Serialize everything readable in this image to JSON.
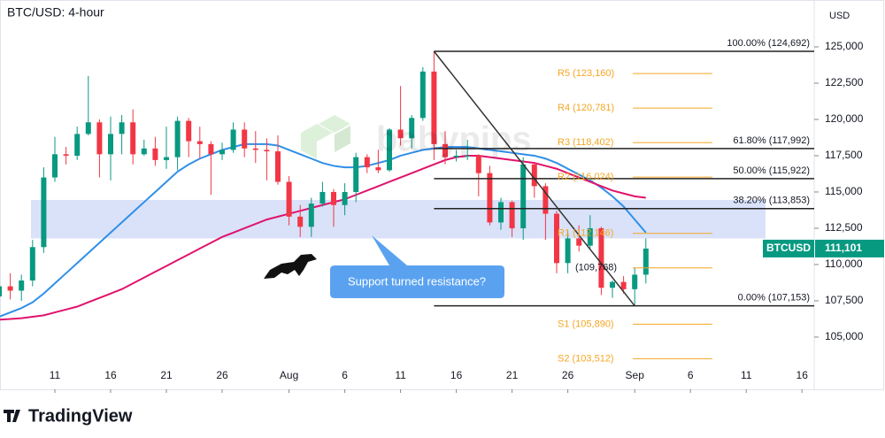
{
  "chart_data": {
    "type": "candlestick",
    "title": "BTC/USD: 4-hour",
    "y_axis_label": "USD",
    "symbol": "BTCUSD",
    "watermark": "babypips",
    "brand": "TradingView",
    "annotation": "Support turned resistance?",
    "categories": [
      null,
      null,
      null,
      null,
      null,
      "11",
      null,
      null,
      null,
      null,
      "16",
      null,
      null,
      null,
      null,
      "21",
      null,
      null,
      null,
      null,
      "26",
      null,
      null,
      null,
      null,
      null,
      "Aug",
      null,
      null,
      null,
      null,
      "6",
      null,
      null,
      null,
      null,
      "11",
      null,
      null,
      null,
      null,
      "16",
      null,
      null,
      null,
      null,
      "21",
      null,
      null,
      null,
      null,
      "26",
      null,
      null,
      null,
      null,
      null,
      "Sep",
      null,
      null,
      null,
      null,
      "6",
      null,
      null,
      null,
      null,
      "11",
      null,
      null,
      null,
      null,
      "16",
      null
    ],
    "open": [
      107800,
      108500,
      108200,
      108900,
      111200,
      116000,
      117600,
      117500,
      119000,
      119800,
      117600,
      119000,
      119800,
      117600,
      118000,
      117200,
      117400,
      119900,
      118500,
      118300,
      117600,
      117900,
      119300,
      118000,
      117900,
      117800,
      115700,
      113300,
      112600,
      114200,
      115000,
      114100,
      115000,
      117400,
      116700,
      116500,
      119300,
      118700,
      120100,
      123300,
      118300,
      117400,
      117500,
      117500,
      116300,
      112900,
      114300,
      112500,
      116900,
      115400,
      113500,
      110100,
      111800,
      111300,
      112500,
      108400,
      108800,
      108300,
      109300,
      null,
      null,
      null,
      null,
      null,
      null,
      null,
      null,
      null,
      null,
      null,
      null,
      null,
      null,
      null
    ],
    "high": [
      109200,
      109400,
      109300,
      111700,
      116700,
      118800,
      118100,
      119500,
      123000,
      120000,
      120200,
      120300,
      120700,
      118600,
      118800,
      119500,
      120200,
      120100,
      119500,
      118500,
      118400,
      119800,
      119800,
      119200,
      118700,
      118900,
      116100,
      114100,
      114600,
      115700,
      115200,
      115600,
      117700,
      117600,
      117900,
      119400,
      122300,
      120300,
      123600,
      124692,
      119200,
      117900,
      118600,
      117600,
      116800,
      114600,
      114400,
      117400,
      117000,
      115600,
      113700,
      112300,
      112700,
      113400,
      112600,
      108900,
      109200,
      109800,
      111800,
      null,
      null,
      null,
      null,
      null,
      null,
      null,
      null,
      null,
      null,
      null,
      null,
      null,
      null,
      null
    ],
    "low": [
      107400,
      107600,
      107500,
      108500,
      110800,
      115700,
      116900,
      117200,
      118900,
      116000,
      115800,
      117600,
      116900,
      117500,
      116800,
      116600,
      116500,
      117400,
      117300,
      114800,
      117200,
      117700,
      117400,
      117000,
      115800,
      115500,
      112700,
      111900,
      111900,
      114000,
      112600,
      113400,
      114300,
      116300,
      116300,
      116400,
      118200,
      118000,
      119900,
      117200,
      116900,
      117100,
      117200,
      114700,
      112700,
      112400,
      111900,
      111700,
      114600,
      111700,
      109400,
      109400,
      110900,
      111100,
      107900,
      107700,
      108000,
      107153,
      108700,
      null,
      null,
      null,
      null,
      null,
      null,
      null,
      null,
      null,
      null,
      null,
      null,
      null,
      null,
      null
    ],
    "close": [
      108500,
      108200,
      108900,
      111200,
      116000,
      117600,
      117500,
      119000,
      119800,
      117600,
      119000,
      119800,
      117600,
      118000,
      117200,
      117400,
      119900,
      118500,
      118300,
      117600,
      117900,
      119300,
      118000,
      117900,
      117800,
      115700,
      113300,
      112600,
      114200,
      115000,
      114100,
      115000,
      117400,
      116700,
      116500,
      119300,
      118700,
      120100,
      123300,
      118300,
      117400,
      117500,
      117500,
      116300,
      112900,
      114300,
      112500,
      116900,
      115400,
      113500,
      110100,
      111800,
      111300,
      112500,
      108400,
      108800,
      108300,
      109300,
      111101,
      null,
      null,
      null,
      null,
      null,
      null,
      null,
      null,
      null,
      null,
      null,
      null,
      null,
      null,
      null
    ],
    "last_price": {
      "value": 111101,
      "label": "111,101"
    },
    "up_color": "#089981",
    "down_color": "#f23645",
    "series": [
      {
        "color": "#2f8fe8",
        "values": [
          106400,
          106700,
          107000,
          107400,
          108000,
          108700,
          109400,
          110100,
          110800,
          111500,
          112200,
          112900,
          113600,
          114300,
          115000,
          115700,
          116400,
          116900,
          117300,
          117600,
          117900,
          118100,
          118300,
          118300,
          118300,
          118200,
          117900,
          117600,
          117300,
          117000,
          116800,
          116700,
          116700,
          116800,
          117000,
          117200,
          117500,
          117700,
          117900,
          118000,
          118100,
          118100,
          118100,
          118000,
          117900,
          117800,
          117700,
          117600,
          117500,
          117300,
          117000,
          116600,
          116200,
          115800,
          115300,
          114700,
          114000,
          113100,
          112200,
          null,
          null,
          null,
          null,
          null,
          null,
          null,
          null,
          null,
          null,
          null,
          null,
          null,
          null,
          null
        ]
      },
      {
        "color": "#e0136d",
        "values": [
          106200,
          106250,
          106300,
          106400,
          106500,
          106700,
          106900,
          107100,
          107400,
          107700,
          108000,
          108300,
          108700,
          109100,
          109500,
          109900,
          110300,
          110700,
          111100,
          111500,
          111900,
          112200,
          112500,
          112800,
          113100,
          113300,
          113500,
          113700,
          113900,
          114100,
          114300,
          114500,
          114800,
          115100,
          115400,
          115700,
          116000,
          116300,
          116600,
          116900,
          117200,
          117400,
          117500,
          117500,
          117400,
          117300,
          117200,
          117100,
          117000,
          116800,
          116600,
          116300,
          116000,
          115700,
          115400,
          115100,
          114900,
          114700,
          114600,
          null,
          null,
          null,
          null,
          null,
          null,
          null,
          null,
          null,
          null,
          null,
          null,
          null,
          null,
          null
        ]
      }
    ],
    "zone": [
      111800,
      114450
    ],
    "zone_color": "#c9d6f7",
    "fib_levels": [
      {
        "label": "100.00% (124,692)",
        "value": 124692
      },
      {
        "label": "61.80% (117,992)",
        "value": 117992
      },
      {
        "label": "50.00% (115,922)",
        "value": 115922
      },
      {
        "label": "38.20% (113,853)",
        "value": 113853
      },
      {
        "label": "0.00% (107,153)",
        "value": 107153
      }
    ],
    "pivot_levels": [
      {
        "label": "R5 (123,160)",
        "value": 123160
      },
      {
        "label": "R4 (120,781)",
        "value": 120781
      },
      {
        "label": "R3 (118,402)",
        "value": 118402
      },
      {
        "label": "R2 (116,024)",
        "value": 116024
      },
      {
        "label": "R1 (112,146)",
        "value": 112146
      },
      {
        "label": "(109,768)",
        "value": 109768
      },
      {
        "label": "S1 (105,890)",
        "value": 105890
      },
      {
        "label": "S2 (103,512)",
        "value": 103512
      }
    ],
    "pivot_color": "#f5a623",
    "ylim": [
      101400,
      128230
    ],
    "yticks": [
      {
        "value": 105000,
        "label": "105,000"
      },
      {
        "value": 107500,
        "label": "107,500"
      },
      {
        "value": 110000,
        "label": "110,000"
      },
      {
        "value": 112500,
        "label": "112,500"
      },
      {
        "value": 115000,
        "label": "115,000"
      },
      {
        "value": 117500,
        "label": "117,500"
      },
      {
        "value": 120000,
        "label": "120,000"
      },
      {
        "value": 122500,
        "label": "122,500"
      },
      {
        "value": 125000,
        "label": "125,000"
      }
    ]
  }
}
